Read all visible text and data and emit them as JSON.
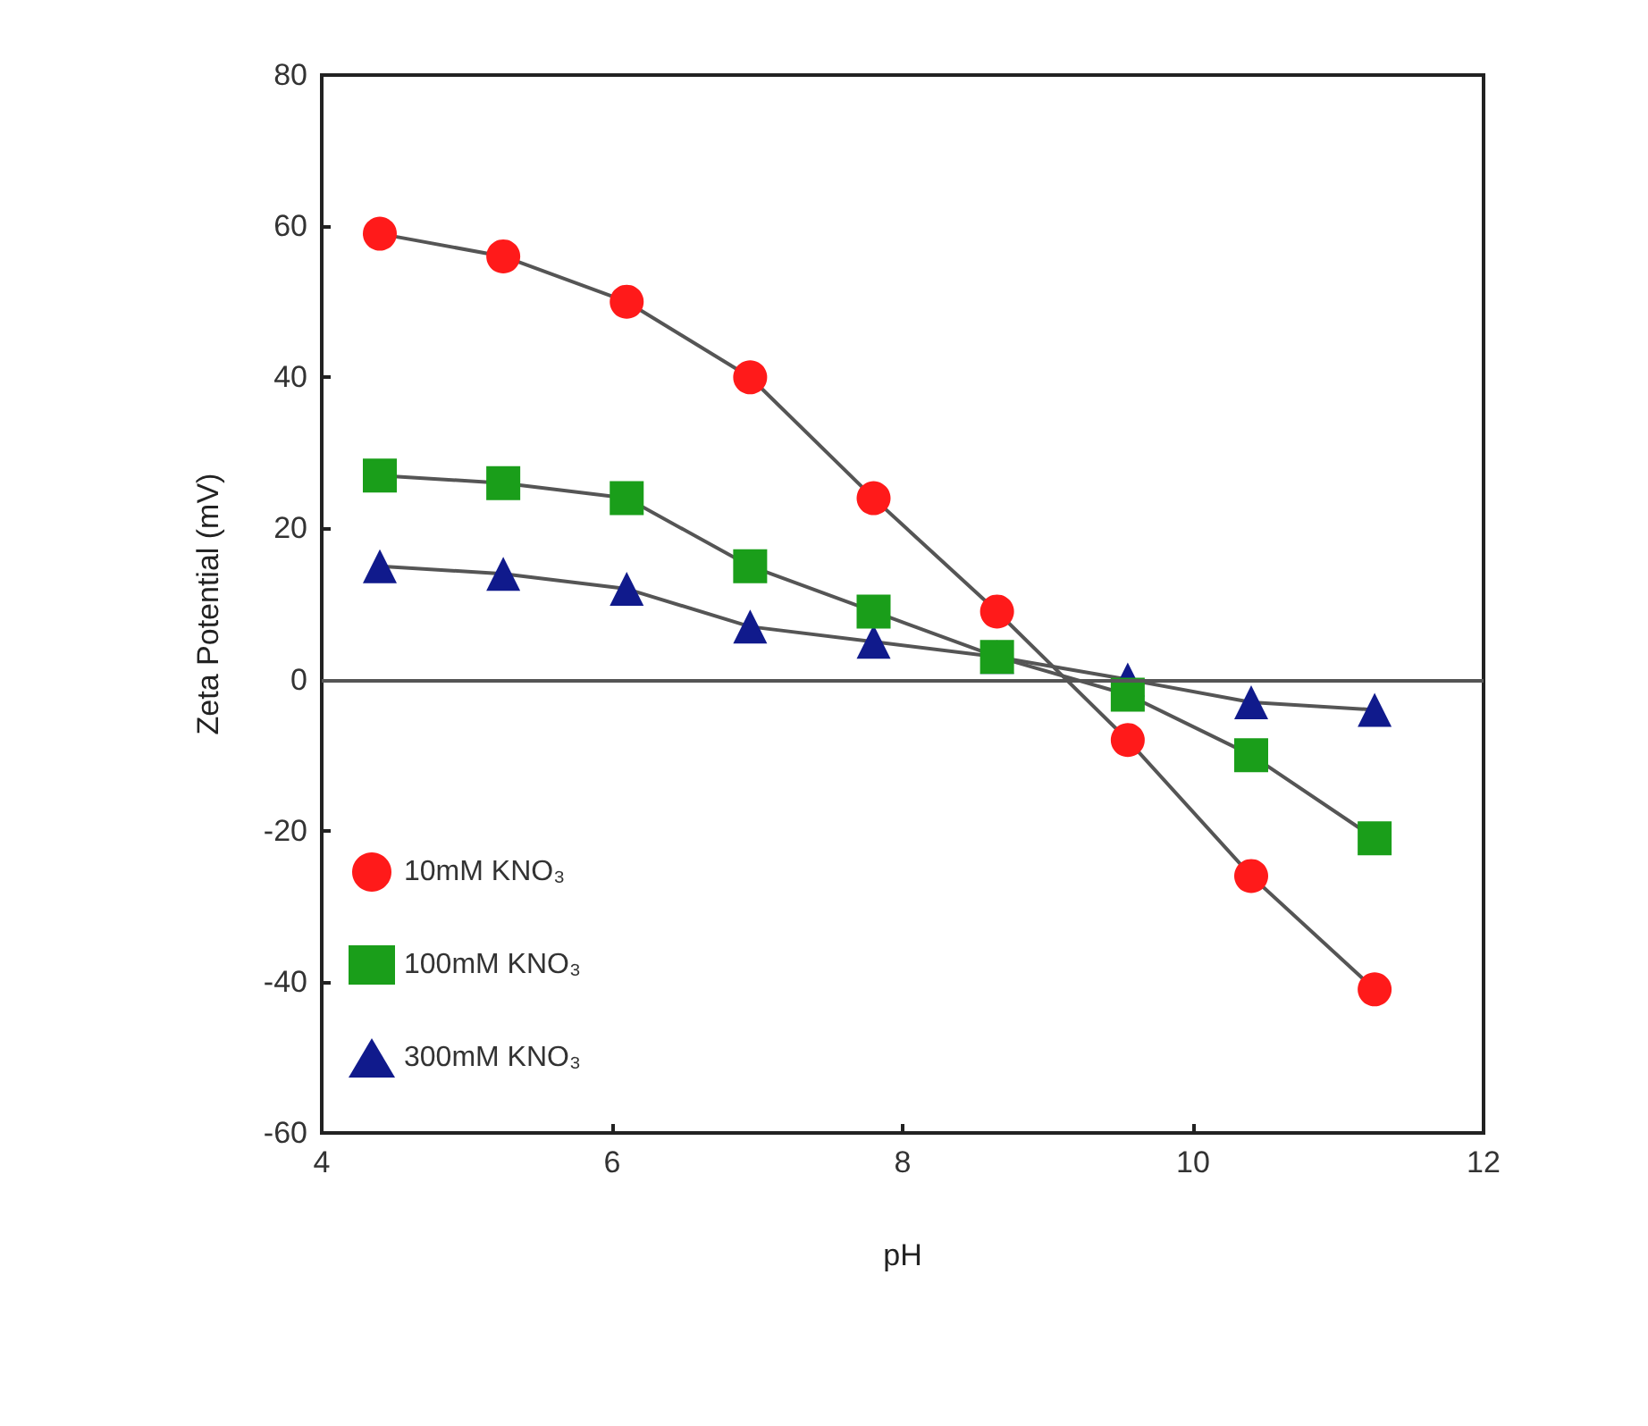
{
  "chart_data": {
    "type": "line",
    "xlabel": "pH",
    "ylabel": "Zeta Potential (mV)",
    "x": [
      4.4,
      5.25,
      6.1,
      6.95,
      7.8,
      8.65,
      9.55,
      10.4,
      11.25
    ],
    "series": [
      {
        "name": "10mM KNO₃",
        "color": "#ff1a1a",
        "marker": "circle",
        "values": [
          59,
          56,
          50,
          40,
          24,
          9,
          -8,
          -26,
          -41
        ]
      },
      {
        "name": "100mM KNO₃",
        "color": "#1a9e1a",
        "marker": "square",
        "values": [
          27,
          26,
          24,
          15,
          9,
          3,
          -2,
          -10,
          -21
        ]
      },
      {
        "name": "300mM KNO₃",
        "color": "#101a8c",
        "marker": "triangle",
        "values": [
          15,
          14,
          12,
          7,
          5,
          3,
          0,
          -3,
          -4
        ]
      }
    ],
    "xlim": [
      4,
      12
    ],
    "xticks": [
      4,
      6,
      8,
      10,
      12
    ],
    "ylim": [
      -60,
      80
    ],
    "yticks": [
      -60,
      -40,
      -20,
      0,
      20,
      40,
      60,
      80
    ],
    "ref_lines": [
      {
        "axis": "y",
        "value": 0,
        "color": "#555555"
      }
    ],
    "grid": false,
    "legend": "bottom left",
    "line_style": "solid"
  }
}
